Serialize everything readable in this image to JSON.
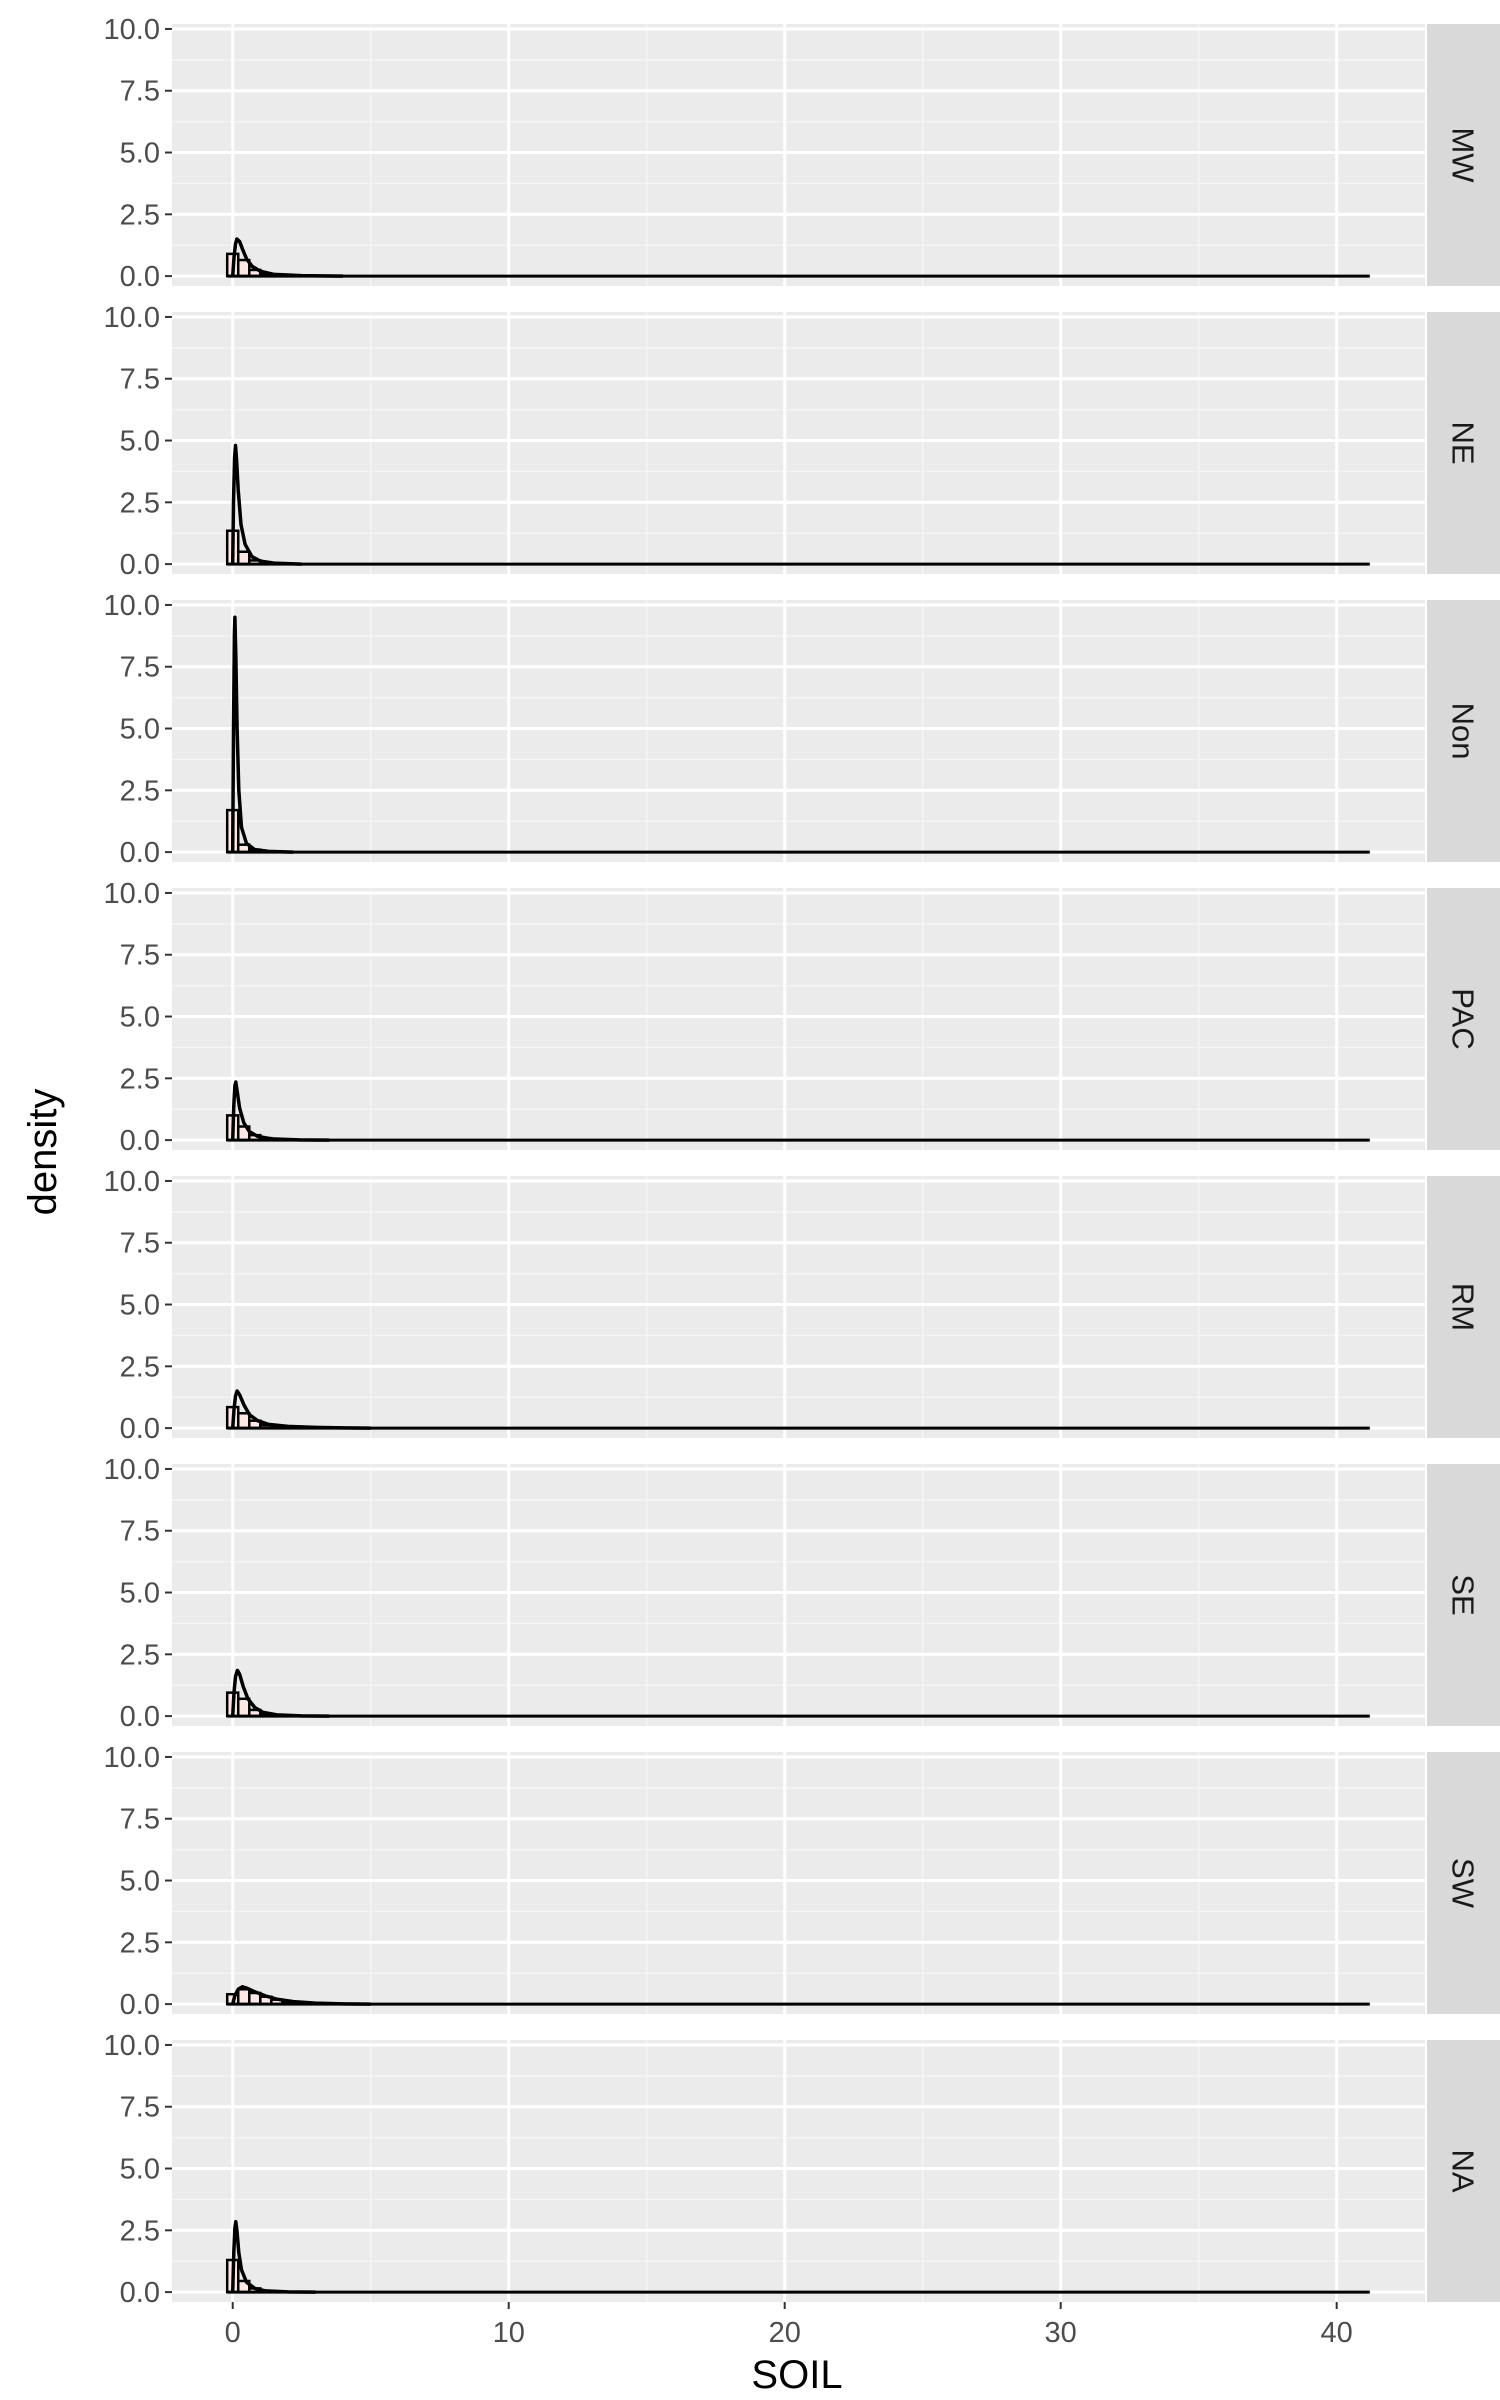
{
  "chart_data": {
    "type": "histogram",
    "xlabel": "SOIL",
    "ylabel": "density",
    "xlim": [
      -2.2,
      43.2
    ],
    "ylim": [
      -0.4,
      10.2
    ],
    "x_ticks": [
      0,
      10,
      20,
      30,
      40
    ],
    "y_ticks": [
      0.0,
      2.5,
      5.0,
      7.5,
      10.0
    ],
    "x_tick_labels": [
      "0",
      "10",
      "20",
      "30",
      "40"
    ],
    "y_tick_labels": [
      "0.0",
      "2.5",
      "5.0",
      "7.5",
      "10.0"
    ],
    "x_line_end": 41.2,
    "grid": true,
    "facet": "rows",
    "panels": [
      {
        "label": "MW",
        "bins": [
          [
            -0.2,
            0.2,
            0.9
          ],
          [
            0.2,
            0.6,
            0.65
          ],
          [
            0.6,
            1.0,
            0.25
          ],
          [
            1.0,
            1.4,
            0.1
          ],
          [
            1.4,
            2.4,
            0.03
          ]
        ],
        "density": [
          [
            0.0,
            0.0
          ],
          [
            0.05,
            0.8
          ],
          [
            0.1,
            1.3
          ],
          [
            0.15,
            1.5
          ],
          [
            0.25,
            1.4
          ],
          [
            0.35,
            1.1
          ],
          [
            0.5,
            0.7
          ],
          [
            0.7,
            0.4
          ],
          [
            1.0,
            0.2
          ],
          [
            1.5,
            0.07
          ],
          [
            2.5,
            0.02
          ],
          [
            4,
            0.0
          ]
        ]
      },
      {
        "label": "NE",
        "bins": [
          [
            -0.2,
            0.2,
            1.35
          ],
          [
            0.2,
            0.6,
            0.5
          ],
          [
            0.6,
            1.0,
            0.15
          ],
          [
            1.0,
            1.4,
            0.05
          ]
        ],
        "density": [
          [
            0.0,
            0.0
          ],
          [
            0.03,
            2.5
          ],
          [
            0.07,
            4.3
          ],
          [
            0.1,
            4.8
          ],
          [
            0.14,
            4.2
          ],
          [
            0.2,
            3.0
          ],
          [
            0.3,
            1.6
          ],
          [
            0.45,
            0.8
          ],
          [
            0.7,
            0.3
          ],
          [
            1.0,
            0.12
          ],
          [
            1.5,
            0.04
          ],
          [
            2.5,
            0.0
          ]
        ]
      },
      {
        "label": "Non",
        "bins": [
          [
            -0.2,
            0.2,
            1.7
          ],
          [
            0.2,
            0.6,
            0.3
          ],
          [
            0.6,
            1.0,
            0.1
          ],
          [
            1.0,
            1.4,
            0.03
          ]
        ],
        "density": [
          [
            0.0,
            0.0
          ],
          [
            0.03,
            5.0
          ],
          [
            0.06,
            8.8
          ],
          [
            0.08,
            9.5
          ],
          [
            0.11,
            8.0
          ],
          [
            0.16,
            5.0
          ],
          [
            0.22,
            2.5
          ],
          [
            0.32,
            1.0
          ],
          [
            0.5,
            0.35
          ],
          [
            0.8,
            0.1
          ],
          [
            1.3,
            0.03
          ],
          [
            2.2,
            0.0
          ]
        ]
      },
      {
        "label": "PAC",
        "bins": [
          [
            -0.2,
            0.2,
            1.0
          ],
          [
            0.2,
            0.6,
            0.55
          ],
          [
            0.6,
            1.0,
            0.2
          ],
          [
            1.0,
            1.4,
            0.08
          ],
          [
            1.4,
            2.4,
            0.02
          ]
        ],
        "density": [
          [
            0.0,
            0.0
          ],
          [
            0.04,
            1.4
          ],
          [
            0.08,
            2.2
          ],
          [
            0.11,
            2.35
          ],
          [
            0.16,
            2.0
          ],
          [
            0.25,
            1.3
          ],
          [
            0.4,
            0.7
          ],
          [
            0.6,
            0.35
          ],
          [
            0.9,
            0.15
          ],
          [
            1.4,
            0.05
          ],
          [
            2.4,
            0.01
          ],
          [
            3.5,
            0.0
          ]
        ]
      },
      {
        "label": "RM",
        "bins": [
          [
            -0.2,
            0.2,
            0.85
          ],
          [
            0.2,
            0.6,
            0.6
          ],
          [
            0.6,
            1.0,
            0.3
          ],
          [
            1.0,
            1.4,
            0.12
          ],
          [
            1.4,
            2.4,
            0.05
          ],
          [
            2.4,
            4.0,
            0.02
          ]
        ],
        "density": [
          [
            0.0,
            0.0
          ],
          [
            0.05,
            0.8
          ],
          [
            0.1,
            1.3
          ],
          [
            0.16,
            1.5
          ],
          [
            0.25,
            1.35
          ],
          [
            0.4,
            0.95
          ],
          [
            0.6,
            0.55
          ],
          [
            0.9,
            0.3
          ],
          [
            1.3,
            0.15
          ],
          [
            2.0,
            0.07
          ],
          [
            3.0,
            0.03
          ],
          [
            4.0,
            0.01
          ],
          [
            5.0,
            0.0
          ]
        ]
      },
      {
        "label": "SE",
        "bins": [
          [
            -0.2,
            0.2,
            0.95
          ],
          [
            0.2,
            0.6,
            0.7
          ],
          [
            0.6,
            1.0,
            0.25
          ],
          [
            1.0,
            1.4,
            0.08
          ],
          [
            1.4,
            2.4,
            0.02
          ]
        ],
        "density": [
          [
            0.0,
            0.0
          ],
          [
            0.05,
            1.0
          ],
          [
            0.1,
            1.6
          ],
          [
            0.17,
            1.85
          ],
          [
            0.25,
            1.7
          ],
          [
            0.38,
            1.2
          ],
          [
            0.55,
            0.7
          ],
          [
            0.8,
            0.35
          ],
          [
            1.1,
            0.15
          ],
          [
            1.6,
            0.05
          ],
          [
            2.5,
            0.01
          ],
          [
            3.5,
            0.0
          ]
        ]
      },
      {
        "label": "SW",
        "bins": [
          [
            -0.2,
            0.2,
            0.4
          ],
          [
            0.2,
            0.6,
            0.6
          ],
          [
            0.6,
            1.0,
            0.45
          ],
          [
            1.0,
            1.4,
            0.3
          ],
          [
            1.4,
            1.8,
            0.18
          ],
          [
            1.8,
            2.6,
            0.08
          ],
          [
            2.6,
            3.6,
            0.03
          ]
        ],
        "density": [
          [
            0.0,
            0.0
          ],
          [
            0.08,
            0.35
          ],
          [
            0.2,
            0.6
          ],
          [
            0.35,
            0.7
          ],
          [
            0.5,
            0.65
          ],
          [
            0.8,
            0.5
          ],
          [
            1.2,
            0.33
          ],
          [
            1.6,
            0.2
          ],
          [
            2.2,
            0.1
          ],
          [
            3.0,
            0.04
          ],
          [
            4.0,
            0.01
          ],
          [
            5.0,
            0.0
          ]
        ]
      },
      {
        "label": "NA",
        "bins": [
          [
            -0.2,
            0.2,
            1.3
          ],
          [
            0.2,
            0.6,
            0.45
          ],
          [
            0.6,
            1.0,
            0.15
          ],
          [
            1.0,
            1.4,
            0.05
          ]
        ],
        "density": [
          [
            0.0,
            0.0
          ],
          [
            0.04,
            1.6
          ],
          [
            0.08,
            2.6
          ],
          [
            0.11,
            2.85
          ],
          [
            0.15,
            2.5
          ],
          [
            0.22,
            1.6
          ],
          [
            0.32,
            0.9
          ],
          [
            0.5,
            0.4
          ],
          [
            0.8,
            0.15
          ],
          [
            1.2,
            0.05
          ],
          [
            2.0,
            0.01
          ],
          [
            3.0,
            0.0
          ]
        ]
      }
    ],
    "colors": {
      "panel_bg": "#ebebeb",
      "grid_major": "#ffffff",
      "grid_minor": "#f5f5f5",
      "strip_bg": "#d9d9d9",
      "bar_fill": "#fde8e5",
      "bar_stroke": "#000000",
      "density_line": "#000000"
    }
  }
}
